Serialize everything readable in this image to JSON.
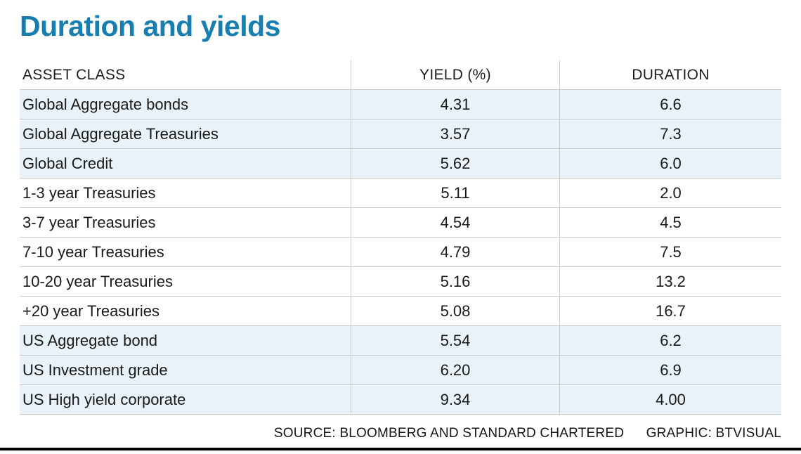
{
  "title": "Duration and yields",
  "table": {
    "columns": [
      "ASSET CLASS",
      "YIELD (%)",
      "DURATION"
    ],
    "rows": [
      {
        "asset": "Global Aggregate bonds",
        "yield": "4.31",
        "duration": "6.6",
        "shaded": true
      },
      {
        "asset": "Global Aggregate Treasuries",
        "yield": "3.57",
        "duration": "7.3",
        "shaded": true
      },
      {
        "asset": "Global Credit",
        "yield": "5.62",
        "duration": "6.0",
        "shaded": true
      },
      {
        "asset": "1-3 year Treasuries",
        "yield": "5.11",
        "duration": "2.0",
        "shaded": false
      },
      {
        "asset": "3-7 year Treasuries",
        "yield": "4.54",
        "duration": "4.5",
        "shaded": false
      },
      {
        "asset": "7-10 year Treasuries",
        "yield": "4.79",
        "duration": "7.5",
        "shaded": false
      },
      {
        "asset": "10-20 year Treasuries",
        "yield": "5.16",
        "duration": "13.2",
        "shaded": false
      },
      {
        "asset": "+20 year Treasuries",
        "yield": "5.08",
        "duration": "16.7",
        "shaded": false
      },
      {
        "asset": "US Aggregate bond",
        "yield": "5.54",
        "duration": "6.2",
        "shaded": true
      },
      {
        "asset": "US Investment grade",
        "yield": "6.20",
        "duration": "6.9",
        "shaded": true
      },
      {
        "asset": "US High yield corporate",
        "yield": "9.34",
        "duration": "4.00",
        "shaded": true
      }
    ]
  },
  "footer": {
    "source": "SOURCE: BLOOMBERG AND STANDARD CHARTERED",
    "graphic": "GRAPHIC: BTVISUAL"
  },
  "colors": {
    "accent": "#177eb2",
    "row_stripe": "#e9f2f9",
    "border": "#c9c9c9",
    "bottom_rule": "#000000",
    "text": "#1a1a1a"
  },
  "chart_data": {
    "type": "table",
    "title": "Duration and yields",
    "columns": [
      "ASSET CLASS",
      "YIELD (%)",
      "DURATION"
    ],
    "rows": [
      [
        "Global Aggregate bonds",
        4.31,
        6.6
      ],
      [
        "Global Aggregate Treasuries",
        3.57,
        7.3
      ],
      [
        "Global Credit",
        5.62,
        6.0
      ],
      [
        "1-3 year Treasuries",
        5.11,
        2.0
      ],
      [
        "3-7 year Treasuries",
        4.54,
        4.5
      ],
      [
        "7-10 year Treasuries",
        4.79,
        7.5
      ],
      [
        "10-20 year Treasuries",
        5.16,
        13.2
      ],
      [
        "+20 year Treasuries",
        5.08,
        16.7
      ],
      [
        "US Aggregate bond",
        5.54,
        6.2
      ],
      [
        "US Investment grade",
        6.2,
        6.9
      ],
      [
        "US High yield corporate",
        9.34,
        4.0
      ]
    ],
    "source": "SOURCE: BLOOMBERG AND STANDARD CHARTERED",
    "credit": "GRAPHIC: BTVISUAL"
  }
}
